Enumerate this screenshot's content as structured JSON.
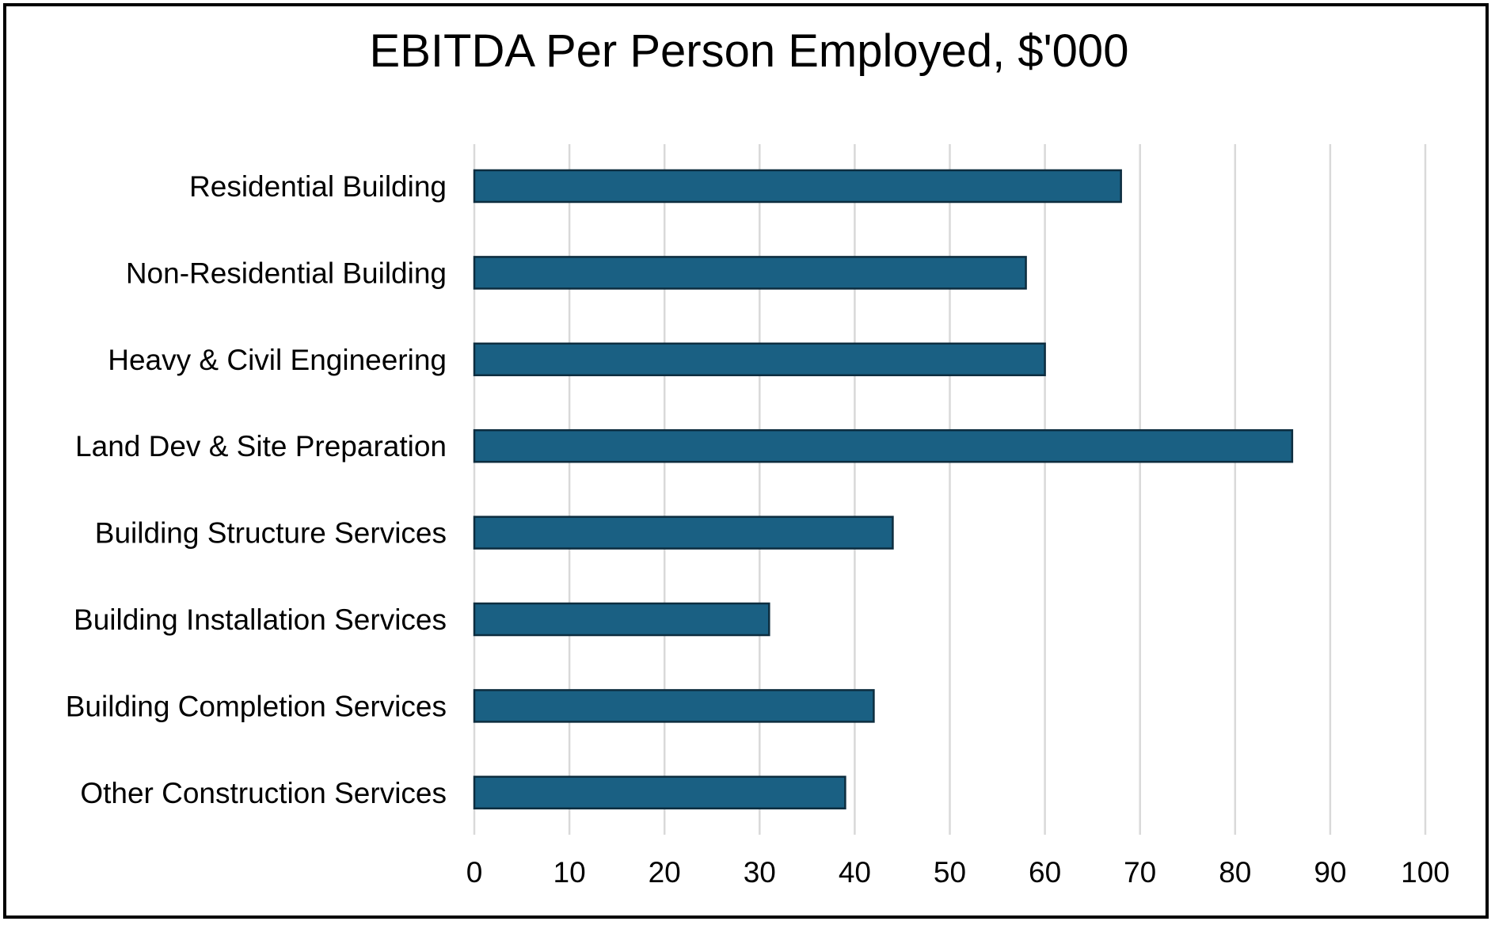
{
  "chart_data": {
    "type": "bar",
    "orientation": "horizontal",
    "title": "EBITDA Per Person Employed, $'000",
    "categories": [
      "Residential Building",
      "Non-Residential Building",
      "Heavy & Civil Engineering",
      "Land Dev & Site Preparation",
      "Building Structure Services",
      "Building Installation Services",
      "Building Completion Services",
      "Other Construction Services"
    ],
    "values": [
      68,
      58,
      60,
      86,
      44,
      31,
      42,
      39
    ],
    "xlim": [
      0,
      100
    ],
    "xticks": [
      "0",
      "10",
      "20",
      "30",
      "40",
      "50",
      "60",
      "70",
      "80",
      "90",
      "100"
    ],
    "xlabel": "",
    "ylabel": "",
    "grid": "vertical",
    "legend": "none",
    "colors": {
      "bar_fill": "#1a6083",
      "bar_stroke": "#0d2d3f",
      "grid": "#d9d9d9"
    }
  }
}
